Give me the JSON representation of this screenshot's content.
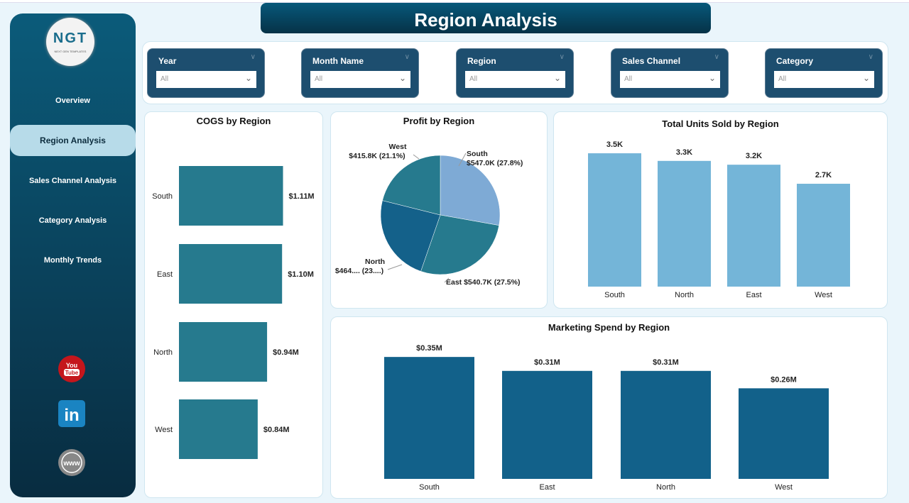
{
  "title": "Region Analysis",
  "logo": {
    "text": "NGT",
    "subtext": "NEXT GEN TEMPLATES"
  },
  "sidebar": {
    "items": [
      {
        "label": "Overview"
      },
      {
        "label": "Region Analysis",
        "active": true
      },
      {
        "label": "Sales Channel Analysis"
      },
      {
        "label": "Category Analysis"
      },
      {
        "label": "Monthly Trends"
      }
    ],
    "social": [
      "youtube-icon",
      "linkedin-icon",
      "website-icon"
    ],
    "youtube_text": "You Tube",
    "linkedin_text": "in",
    "www_text": "www"
  },
  "filters": [
    {
      "label": "Year",
      "value": "All"
    },
    {
      "label": "Month Name",
      "value": "All"
    },
    {
      "label": "Region",
      "value": "All"
    },
    {
      "label": "Sales Channel",
      "value": "All"
    },
    {
      "label": "Category",
      "value": "All"
    }
  ],
  "colors": {
    "bar_teal": "#267a8e",
    "bar_light": "#74b5d8",
    "bar_dark": "#12618a",
    "pie": [
      "#7eaad5",
      "#267a8e",
      "#14618a",
      "#267a8e"
    ]
  },
  "chart_data": [
    {
      "type": "bar",
      "orientation": "horizontal",
      "title": "COGS by Region",
      "categories": [
        "South",
        "East",
        "North",
        "West"
      ],
      "values": [
        1.11,
        1.1,
        0.94,
        0.84
      ],
      "labels": [
        "$1.11M",
        "$1.10M",
        "$0.94M",
        "$0.84M"
      ],
      "unit": "$M"
    },
    {
      "type": "pie",
      "title": "Profit by Region",
      "categories": [
        "South",
        "East",
        "North",
        "West"
      ],
      "values": [
        27.8,
        27.5,
        23.6,
        21.1
      ],
      "labels": [
        "South\n$547.0K (27.8%)",
        "East $540.7K (27.5%)",
        "North\n$464.... (23....)",
        "West\n$415.8K (21.1%)"
      ]
    },
    {
      "type": "bar",
      "title": "Total Units Sold by Region",
      "categories": [
        "South",
        "North",
        "East",
        "West"
      ],
      "values": [
        3.5,
        3.3,
        3.2,
        2.7
      ],
      "labels": [
        "3.5K",
        "3.3K",
        "3.2K",
        "2.7K"
      ],
      "unit": "K"
    },
    {
      "type": "bar",
      "title": "Marketing Spend by Region",
      "categories": [
        "South",
        "East",
        "North",
        "West"
      ],
      "values": [
        0.35,
        0.31,
        0.31,
        0.26
      ],
      "labels": [
        "$0.35M",
        "$0.31M",
        "$0.31M",
        "$0.26M"
      ],
      "unit": "$M"
    }
  ]
}
